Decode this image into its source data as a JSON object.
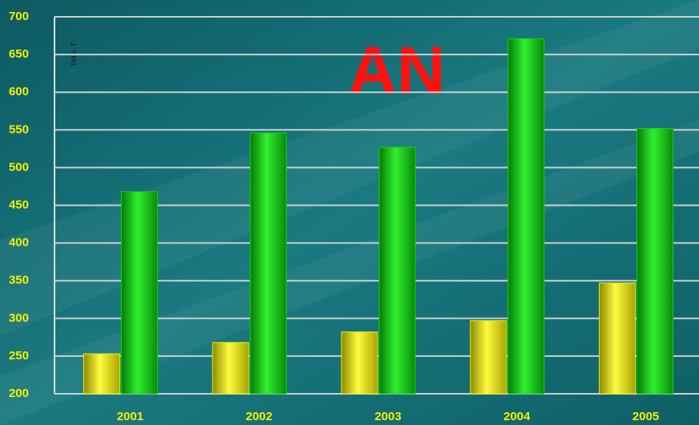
{
  "chart_data": {
    "type": "bar",
    "title": "AN",
    "y_label": "тыс. т",
    "categories": [
      "2001",
      "2002",
      "2003",
      "2004",
      "2005"
    ],
    "series": [
      {
        "color": "#f2ee10",
        "values": [
          253,
          268,
          282,
          297,
          347
        ]
      },
      {
        "color": "#12d412",
        "values": [
          468,
          546,
          527,
          671,
          552
        ]
      }
    ],
    "ylim": [
      200,
      700
    ],
    "yticks": [
      200,
      250,
      300,
      350,
      400,
      450,
      500,
      550,
      600,
      650,
      700
    ],
    "grid": true
  }
}
